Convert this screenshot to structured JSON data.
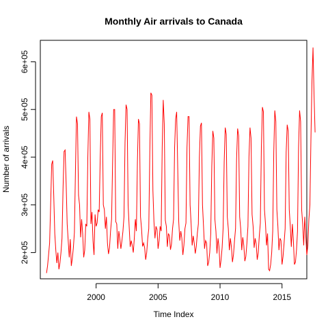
{
  "chart_data": {
    "type": "line",
    "title": "Monthly Air arrivals to Canada",
    "xlabel": "Time Index",
    "ylabel": "Number of arrivals",
    "xlim": [
      1995.5,
      2017.0
    ],
    "ylim": [
      145000,
      645000
    ],
    "xticks": [
      2000,
      2005,
      2010,
      2015
    ],
    "xtick_labels": [
      "2000",
      "2005",
      "2010",
      "2015"
    ],
    "yticks": [
      200000,
      300000,
      400000,
      500000,
      600000
    ],
    "ytick_labels": [
      "2e+05",
      "3e+05",
      "4e+05",
      "5e+05",
      "6e+05"
    ],
    "grid": false,
    "series": [
      {
        "color": "#ff0000",
        "start": 1996.0,
        "frequency": 12,
        "values": [
          157000,
          172000,
          195000,
          220000,
          300000,
          385000,
          393000,
          320000,
          240000,
          205000,
          178000,
          200000,
          165000,
          178000,
          200000,
          230000,
          335000,
          412000,
          415000,
          345000,
          260000,
          225000,
          190000,
          228000,
          172000,
          188000,
          210000,
          242000,
          370000,
          485000,
          470000,
          320000,
          300000,
          232000,
          270000,
          240000,
          190000,
          205000,
          260000,
          255000,
          400000,
          495000,
          480000,
          260000,
          285000,
          225000,
          195000,
          280000,
          255000,
          262000,
          290000,
          285000,
          400000,
          485000,
          493000,
          300000,
          290000,
          250000,
          275000,
          220000,
          197000,
          210000,
          245000,
          270000,
          390000,
          500000,
          500000,
          265000,
          260000,
          208000,
          245000,
          228000,
          208000,
          225000,
          245000,
          275000,
          430000,
          510000,
          500000,
          300000,
          255000,
          212000,
          225000,
          215000,
          200000,
          230000,
          270000,
          245000,
          390000,
          480000,
          470000,
          275000,
          250000,
          213000,
          220000,
          210000,
          185000,
          200000,
          230000,
          250000,
          410000,
          535000,
          530000,
          330000,
          265000,
          230000,
          255000,
          248000,
          208000,
          225000,
          255000,
          245000,
          420000,
          520000,
          470000,
          268000,
          255000,
          212000,
          240000,
          235000,
          206000,
          218000,
          250000,
          270000,
          420000,
          480000,
          495000,
          380000,
          265000,
          225000,
          245000,
          230000,
          195000,
          215000,
          250000,
          262000,
          420000,
          485000,
          485000,
          300000,
          260000,
          215000,
          235000,
          220000,
          198000,
          213000,
          240000,
          260000,
          400000,
          465000,
          472000,
          300000,
          255000,
          208000,
          225000,
          220000,
          172000,
          180000,
          200000,
          240000,
          380000,
          455000,
          440000,
          270000,
          245000,
          198000,
          230000,
          212000,
          168000,
          185000,
          210000,
          252000,
          390000,
          462000,
          448000,
          275000,
          250000,
          205000,
          230000,
          212000,
          180000,
          195000,
          225000,
          250000,
          395000,
          460000,
          445000,
          275000,
          250000,
          205000,
          232000,
          215000,
          182000,
          192000,
          220000,
          255000,
          400000,
          462000,
          440000,
          280000,
          255000,
          210000,
          230000,
          218000,
          185000,
          200000,
          235000,
          262000,
          420000,
          505000,
          495000,
          290000,
          260000,
          215000,
          240000,
          165000,
          162000,
          175000,
          200000,
          245000,
          410000,
          498000,
          475000,
          290000,
          255000,
          205000,
          230000,
          225000,
          175000,
          192000,
          220000,
          250000,
          410000,
          468000,
          455000,
          290000,
          255000,
          212000,
          260000,
          225000,
          175000,
          180000,
          205000,
          245000,
          420000,
          498000,
          475000,
          290000,
          260000,
          215000,
          275000,
          235000,
          195000,
          215000,
          270000,
          300000,
          440000,
          560000,
          630000,
          530000,
          452000
        ]
      }
    ]
  }
}
